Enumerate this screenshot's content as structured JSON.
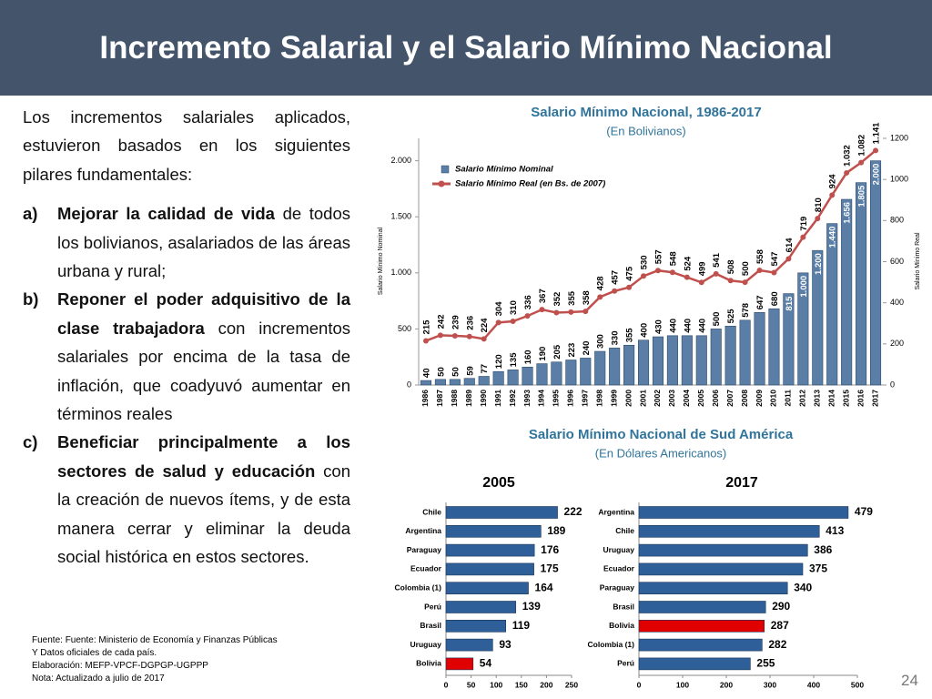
{
  "header": {
    "title": "Incremento Salarial y el Salario Mínimo Nacional"
  },
  "body": {
    "intro": "Los incrementos salariales aplicados, estuvieron basados en los siguientes pilares fundamentales:",
    "items": [
      {
        "marker": "a)",
        "bold": "Mejorar la calidad de vida",
        "text": " de todos los bolivianos, asalariados de las áreas urbana y rural;"
      },
      {
        "marker": "b)",
        "bold": "Reponer el poder adquisitivo de la clase trabajadora",
        "text": " con incrementos salariales por encima de la tasa de inflación, que coadyuvó aumentar en términos reales"
      },
      {
        "marker": "c)",
        "bold": "Beneficiar principalmente a los sectores de salud y educación",
        "text": " con la creación de nuevos ítems, y de esta manera cerrar y eliminar la deuda social histórica en estos sectores."
      }
    ]
  },
  "sources": [
    "Fuente: Fuente: Ministerio de Economía y Finanzas Públicas",
    "Y Datos oficiales de cada país.",
    "Elaboración: MEFP-VPCF-DGPGP-UGPPP",
    "Nota: Actualizado a julio de 2017"
  ],
  "page_number": "24",
  "section": {
    "title": "Salario Mínimo Nacional de Sud América",
    "subtitle": "(En Dólares Americanos)"
  },
  "chart_data": [
    {
      "type": "combo",
      "title": "Salario Mínimo Nacional, 1986-2017",
      "subtitle": "(En Bolivianos)",
      "categories": [
        "1986",
        "1987",
        "1988",
        "1989",
        "1990",
        "1991",
        "1992",
        "1993",
        "1994",
        "1995",
        "1996",
        "1997",
        "1998",
        "1999",
        "2000",
        "2001",
        "2002",
        "2003",
        "2004",
        "2005",
        "2006",
        "2007",
        "2008",
        "2009",
        "2010",
        "2011",
        "2012",
        "2013",
        "2014",
        "2015",
        "2016",
        "2017"
      ],
      "ylabel": "Salario Mínimo Nominal",
      "y2label": "Salario Mínimo Real",
      "ylim": [
        0,
        2200
      ],
      "yticks": [
        0,
        500,
        {
          "value": 1000,
          "label": "1.000"
        },
        {
          "value": 1500,
          "label": "1.500"
        },
        {
          "value": 2000,
          "label": "2.000"
        }
      ],
      "y2lim": [
        0,
        1200
      ],
      "y2ticks": [
        0,
        200,
        400,
        600,
        800,
        1000,
        1200
      ],
      "series": [
        {
          "name": "Salario Mínimo Nominal",
          "type": "bar",
          "color": "#5b7ea6",
          "values": [
            40,
            50,
            50,
            59,
            77,
            120,
            135,
            160,
            190,
            205,
            223,
            240,
            300,
            330,
            355,
            400,
            430,
            440,
            440,
            440,
            500,
            525,
            578,
            647,
            680,
            815,
            1000,
            1200,
            1440,
            1656,
            1805,
            2000
          ],
          "value_labels": [
            "40",
            "50",
            "50",
            "59",
            "77",
            "120",
            "135",
            "160",
            "190",
            "205",
            "223",
            "240",
            "300",
            "330",
            "355",
            "400",
            "430",
            "440",
            "440",
            "440",
            "500",
            "525",
            "578",
            "647",
            "680",
            "815",
            "1.000",
            "1.200",
            "1.440",
            "1.656",
            "1.805",
            "2.000"
          ]
        },
        {
          "name": "Salario Mínimo Real (en Bs. de 2007)",
          "type": "line",
          "axis": "y2",
          "color": "#c0504d",
          "values": [
            215,
            242,
            239,
            236,
            224,
            304,
            310,
            336,
            367,
            352,
            355,
            358,
            428,
            457,
            475,
            530,
            557,
            548,
            524,
            499,
            541,
            508,
            500,
            558,
            547,
            614,
            719,
            810,
            924,
            1032,
            1082,
            1141
          ],
          "value_labels": [
            "215",
            "242",
            "239",
            "236",
            "224",
            "304",
            "310",
            "336",
            "367",
            "352",
            "355",
            "358",
            "428",
            "457",
            "475",
            "530",
            "557",
            "548",
            "524",
            "499",
            "541",
            "508",
            "500",
            "558",
            "547",
            "614",
            "719",
            "810",
            "924",
            "1.032",
            "1.082",
            "1.141"
          ]
        }
      ]
    },
    {
      "type": "hbar",
      "title": "2005",
      "categories": [
        "Chile",
        "Argentina",
        "Paraguay",
        "Ecuador",
        "Colombia (1)",
        "Perú",
        "Brasil",
        "Uruguay",
        "Bolivia"
      ],
      "values": [
        222,
        189,
        176,
        175,
        164,
        139,
        119,
        93,
        54
      ],
      "colors": [
        "#2f5f98",
        "#2f5f98",
        "#2f5f98",
        "#2f5f98",
        "#2f5f98",
        "#2f5f98",
        "#2f5f98",
        "#2f5f98",
        "#e00000"
      ],
      "xlim": [
        0,
        250
      ],
      "xticks": [
        0,
        50,
        100,
        150,
        200,
        250
      ]
    },
    {
      "type": "hbar",
      "title": "2017",
      "categories": [
        "Argentina",
        "Chile",
        "Uruguay",
        "Ecuador",
        "Paraguay",
        "Brasil",
        "Bolivia",
        "Colombia (1)",
        "Perú"
      ],
      "values": [
        479,
        413,
        386,
        375,
        340,
        290,
        287,
        282,
        255
      ],
      "colors": [
        "#2f5f98",
        "#2f5f98",
        "#2f5f98",
        "#2f5f98",
        "#2f5f98",
        "#2f5f98",
        "#e00000",
        "#2f5f98",
        "#2f5f98"
      ],
      "xlim": [
        0,
        500
      ],
      "xticks": [
        0,
        100,
        200,
        300,
        400,
        500
      ]
    }
  ]
}
